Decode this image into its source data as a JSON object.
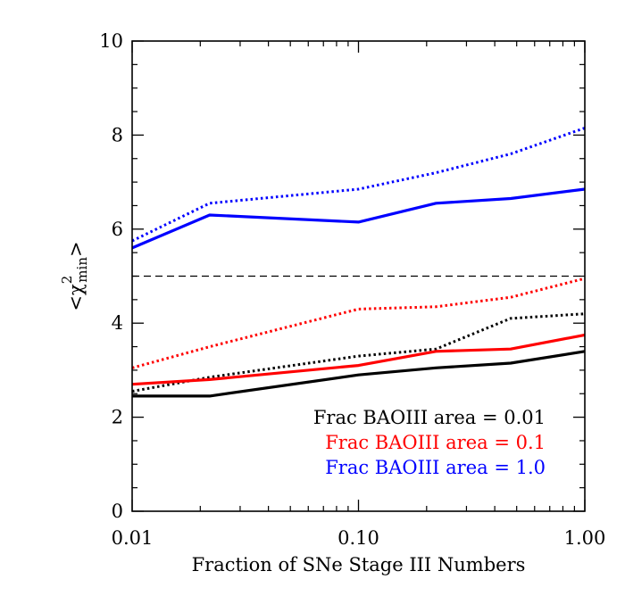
{
  "chart_data": {
    "type": "line",
    "xlabel": "Fraction of SNe Stage III Numbers",
    "ylabel": "<χ²min>",
    "xscale": "log",
    "xlim": [
      0.01,
      1.0
    ],
    "ylim": [
      0,
      10
    ],
    "x_ticks": [
      {
        "value": 0.01,
        "label": "0.01"
      },
      {
        "value": 0.1,
        "label": "0.10"
      },
      {
        "value": 1.0,
        "label": "1.00"
      }
    ],
    "y_ticks": [
      {
        "value": 0,
        "label": "0"
      },
      {
        "value": 2,
        "label": "2"
      },
      {
        "value": 4,
        "label": "4"
      },
      {
        "value": 6,
        "label": "6"
      },
      {
        "value": 8,
        "label": "8"
      },
      {
        "value": 10,
        "label": "10"
      }
    ],
    "grid": false,
    "reference_line": {
      "y": 5,
      "style": "dashed",
      "color": "#000000"
    },
    "series": [
      {
        "color": "#000000",
        "style": "solid",
        "x": [
          0.01,
          0.022,
          0.1,
          0.22,
          0.47,
          1.0
        ],
        "y": [
          2.45,
          2.45,
          2.9,
          3.05,
          3.15,
          3.4
        ]
      },
      {
        "color": "#000000",
        "style": "dotted",
        "x": [
          0.01,
          0.022,
          0.1,
          0.22,
          0.47,
          1.0
        ],
        "y": [
          2.55,
          2.85,
          3.3,
          3.45,
          4.1,
          4.2
        ]
      },
      {
        "color": "#ff0000",
        "style": "solid",
        "x": [
          0.01,
          0.022,
          0.1,
          0.22,
          0.47,
          1.0
        ],
        "y": [
          2.7,
          2.8,
          3.1,
          3.4,
          3.45,
          3.75
        ]
      },
      {
        "color": "#ff0000",
        "style": "dotted",
        "x": [
          0.01,
          0.022,
          0.1,
          0.22,
          0.47,
          1.0
        ],
        "y": [
          3.05,
          3.5,
          4.3,
          4.35,
          4.55,
          4.95
        ]
      },
      {
        "color": "#0000ff",
        "style": "solid",
        "x": [
          0.01,
          0.022,
          0.1,
          0.22,
          0.47,
          1.0
        ],
        "y": [
          5.6,
          6.3,
          6.15,
          6.55,
          6.65,
          6.85
        ]
      },
      {
        "color": "#0000ff",
        "style": "dotted",
        "x": [
          0.01,
          0.022,
          0.1,
          0.22,
          0.47,
          1.0
        ],
        "y": [
          5.75,
          6.55,
          6.85,
          7.2,
          7.6,
          8.15
        ]
      }
    ],
    "legend": {
      "placement": "bottom-right",
      "entries": [
        {
          "text": "Frac BAOIII area = 0.01",
          "color": "#000000"
        },
        {
          "text": "Frac BAOIII area = 0.1",
          "color": "#ff0000"
        },
        {
          "text": "Frac BAOIII area = 1.0",
          "color": "#0000ff"
        }
      ]
    }
  }
}
